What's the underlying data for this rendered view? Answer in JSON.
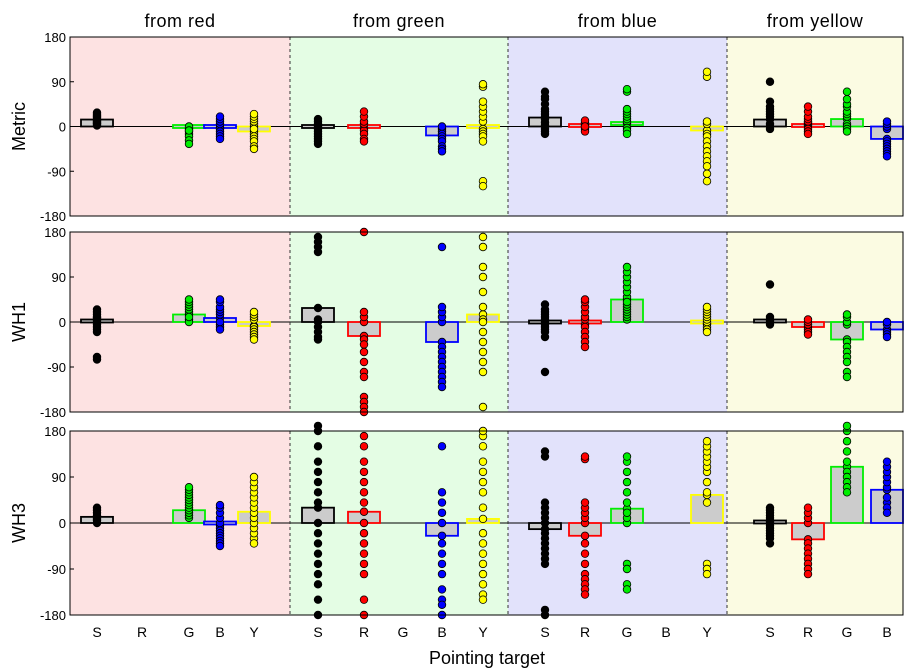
{
  "chart_data": {
    "type": "bar",
    "xlabel": "Pointing target",
    "ylim": [
      -180,
      180
    ],
    "yticks": [
      180,
      90,
      0,
      -90,
      -180
    ],
    "groups": [
      {
        "label": "from red",
        "color": "#fde2e2",
        "targets": [
          "S",
          "R",
          "G",
          "B",
          "Y"
        ]
      },
      {
        "label": "from green",
        "color": "#e4fde4",
        "targets": [
          "S",
          "R",
          "G",
          "B",
          "Y"
        ]
      },
      {
        "label": "from blue",
        "color": "#e2e2fb",
        "targets": [
          "S",
          "R",
          "G",
          "B",
          "Y"
        ]
      },
      {
        "label": "from yellow",
        "color": "#fbfbe2",
        "targets": [
          "S",
          "R",
          "G",
          "B"
        ]
      }
    ],
    "target_colors": {
      "S": "#000000",
      "R": "#ff0000",
      "G": "#00ee00",
      "B": "#0000ff",
      "Y": "#ffff00"
    },
    "panels": [
      {
        "ylabel": "Metric",
        "means": [
          [
            14,
            null,
            -5,
            -2,
            -10
          ],
          [
            -5,
            -3,
            null,
            -18,
            -5
          ],
          [
            18,
            2,
            6,
            null,
            -8
          ],
          [
            14,
            2,
            15,
            -25
          ]
        ],
        "points": [
          [
            [
              2,
              5,
              8,
              12,
              15,
              18,
              22,
              25,
              28,
              10,
              6,
              20
            ],
            [],
            [
              -5,
              -10,
              -15,
              -20,
              -28,
              -35,
              0,
              -8
            ],
            [
              -2,
              -5,
              -10,
              -15,
              -20,
              -25,
              5,
              10,
              15,
              20
            ],
            [
              -10,
              -15,
              -20,
              -25,
              -30,
              -40,
              -45,
              0,
              5,
              10,
              15,
              20,
              25,
              -5
            ]
          ],
          [
            [
              -5,
              -10,
              -15,
              -20,
              -25,
              -30,
              -35,
              0,
              5,
              10,
              15
            ],
            [
              -3,
              -8,
              -15,
              -25,
              -30,
              5,
              10,
              20,
              30
            ],
            [],
            [
              -5,
              -10,
              -15,
              -20,
              -25,
              -30,
              -40,
              -45,
              -50,
              0
            ],
            [
              -5,
              -10,
              -15,
              -20,
              -30,
              10,
              20,
              30,
              40,
              50,
              80,
              85,
              -110,
              -120
            ]
          ],
          [
            [
              2,
              8,
              15,
              20,
              25,
              30,
              35,
              45,
              55,
              60,
              70,
              -5,
              -10,
              -15
            ],
            [
              2,
              5,
              8,
              12,
              -5,
              -10,
              0
            ],
            [
              6,
              10,
              15,
              20,
              25,
              30,
              35,
              70,
              75,
              -3,
              -8,
              -15
            ],
            [],
            [
              -8,
              -15,
              -20,
              -30,
              -40,
              -50,
              -60,
              -70,
              -80,
              -95,
              -110,
              100,
              110,
              5,
              10
            ]
          ],
          [
            [
              14,
              20,
              25,
              30,
              35,
              40,
              50,
              90,
              5,
              0,
              -5
            ],
            [
              2,
              5,
              8,
              10,
              15,
              20,
              30,
              40,
              -5,
              -10,
              -15
            ],
            [
              15,
              20,
              25,
              30,
              40,
              45,
              55,
              70,
              5,
              0,
              -5,
              -10
            ],
            [
              -25,
              -30,
              -35,
              -40,
              -45,
              -50,
              -55,
              -60,
              -5,
              0,
              5,
              10
            ]
          ]
        ]
      },
      {
        "ylabel": "WH1",
        "means": [
          [
            2,
            null,
            15,
            8,
            -8
          ],
          [
            28,
            -28,
            null,
            -40,
            15
          ],
          [
            0,
            -5,
            45,
            null,
            -3
          ],
          [
            2,
            -10,
            -35,
            -15
          ]
        ],
        "points": [
          [
            [
              2,
              5,
              8,
              10,
              15,
              20,
              25,
              -5,
              -10,
              -15,
              -20,
              -70,
              -75
            ],
            [],
            [
              15,
              20,
              25,
              30,
              35,
              40,
              45,
              5,
              0,
              10
            ],
            [
              8,
              15,
              20,
              25,
              30,
              40,
              45,
              -5,
              -10,
              -15,
              0
            ],
            [
              -8,
              -10,
              -15,
              -20,
              -25,
              -30,
              -35,
              5,
              10,
              15,
              20
            ]
          ],
          [
            [
              28,
              -10,
              -20,
              -30,
              -35,
              0,
              5,
              140,
              150,
              160,
              170
            ],
            [
              -28,
              -35,
              -45,
              -60,
              -80,
              -100,
              -110,
              -150,
              -160,
              -170,
              -180,
              0,
              10,
              20,
              180
            ],
            [],
            [
              -40,
              -50,
              -60,
              -70,
              -80,
              -90,
              -100,
              -110,
              -120,
              -130,
              0,
              10,
              20,
              30,
              150
            ],
            [
              15,
              30,
              60,
              90,
              110,
              150,
              170,
              -20,
              -40,
              -60,
              -80,
              -100,
              -170,
              5,
              0
            ]
          ],
          [
            [
              0,
              5,
              10,
              15,
              20,
              25,
              35,
              -5,
              -10,
              -15,
              -20,
              -30,
              -100
            ],
            [
              -5,
              -10,
              -20,
              -30,
              -40,
              -50,
              5,
              10,
              20,
              30,
              40,
              45
            ],
            [
              45,
              50,
              60,
              70,
              80,
              90,
              100,
              110,
              5,
              10,
              15,
              20,
              25,
              30,
              35,
              40
            ],
            [],
            [
              -3,
              -5,
              -10,
              -15,
              -20,
              0,
              5,
              10,
              15,
              20,
              25,
              30
            ]
          ],
          [
            [
              2,
              5,
              10,
              -5,
              75
            ],
            [
              -10,
              -15,
              -20,
              -25,
              -5,
              0,
              5
            ],
            [
              -35,
              -40,
              -50,
              -60,
              -70,
              -80,
              -100,
              -110,
              -5,
              0,
              10,
              15
            ],
            [
              -15,
              -20,
              -25,
              -30,
              -5,
              0
            ]
          ]
        ]
      },
      {
        "ylabel": "WH3",
        "means": [
          [
            12,
            null,
            25,
            0,
            22
          ],
          [
            30,
            22,
            null,
            -25,
            8
          ],
          [
            -12,
            -25,
            28,
            null,
            55
          ],
          [
            2,
            -32,
            110,
            65
          ]
        ],
        "points": [
          [
            [
              5,
              8,
              12,
              15,
              20,
              25,
              30,
              0
            ],
            [],
            [
              10,
              15,
              20,
              25,
              30,
              35,
              40,
              45,
              50,
              55,
              60,
              65,
              70
            ],
            [
              -5,
              -10,
              -15,
              -20,
              -25,
              -30,
              -35,
              -40,
              -45,
              0,
              10,
              20,
              30,
              35
            ],
            [
              -30,
              -40,
              -20,
              -10,
              0,
              10,
              20,
              30,
              40,
              50,
              60,
              70,
              80,
              90
            ]
          ],
          [
            [
              30,
              40,
              60,
              80,
              100,
              120,
              150,
              180,
              190,
              0,
              -20,
              -40,
              -60,
              -80,
              -100,
              -120,
              -150,
              -180
            ],
            [
              22,
              40,
              60,
              80,
              100,
              120,
              150,
              170,
              0,
              -20,
              -40,
              -60,
              -80,
              -100,
              -150,
              -180
            ],
            [],
            [
              -25,
              -40,
              -60,
              -80,
              -100,
              -130,
              -150,
              -160,
              -180,
              0,
              20,
              40,
              60,
              150
            ],
            [
              8,
              30,
              60,
              80,
              100,
              120,
              150,
              170,
              180,
              -20,
              -40,
              -60,
              -80,
              -100,
              -120,
              -140,
              -150
            ]
          ],
          [
            [
              -12,
              -20,
              -30,
              -40,
              -50,
              -60,
              -70,
              -80,
              0,
              10,
              20,
              30,
              40,
              130,
              140,
              -170,
              -180
            ],
            [
              -25,
              -40,
              -60,
              -80,
              -100,
              -110,
              -120,
              -130,
              -140,
              0,
              10,
              20,
              30,
              40,
              125,
              130
            ],
            [
              28,
              40,
              60,
              80,
              100,
              120,
              130,
              0,
              10,
              20,
              -80,
              -90,
              -120,
              -130
            ],
            [],
            [
              55,
              60,
              80,
              100,
              110,
              120,
              130,
              140,
              150,
              160,
              -80,
              -90,
              -100,
              40
            ]
          ],
          [
            [
              2,
              5,
              10,
              15,
              20,
              25,
              30,
              -5,
              -10,
              -15,
              -20,
              -25,
              -30,
              -40
            ],
            [
              -32,
              -40,
              -50,
              -60,
              -70,
              -80,
              -90,
              -100,
              0,
              10,
              20,
              30
            ],
            [
              110,
              120,
              140,
              160,
              180,
              190,
              100,
              90,
              80,
              70,
              60
            ],
            [
              65,
              70,
              80,
              90,
              100,
              110,
              120,
              40,
              30,
              20,
              50
            ]
          ]
        ]
      }
    ]
  }
}
